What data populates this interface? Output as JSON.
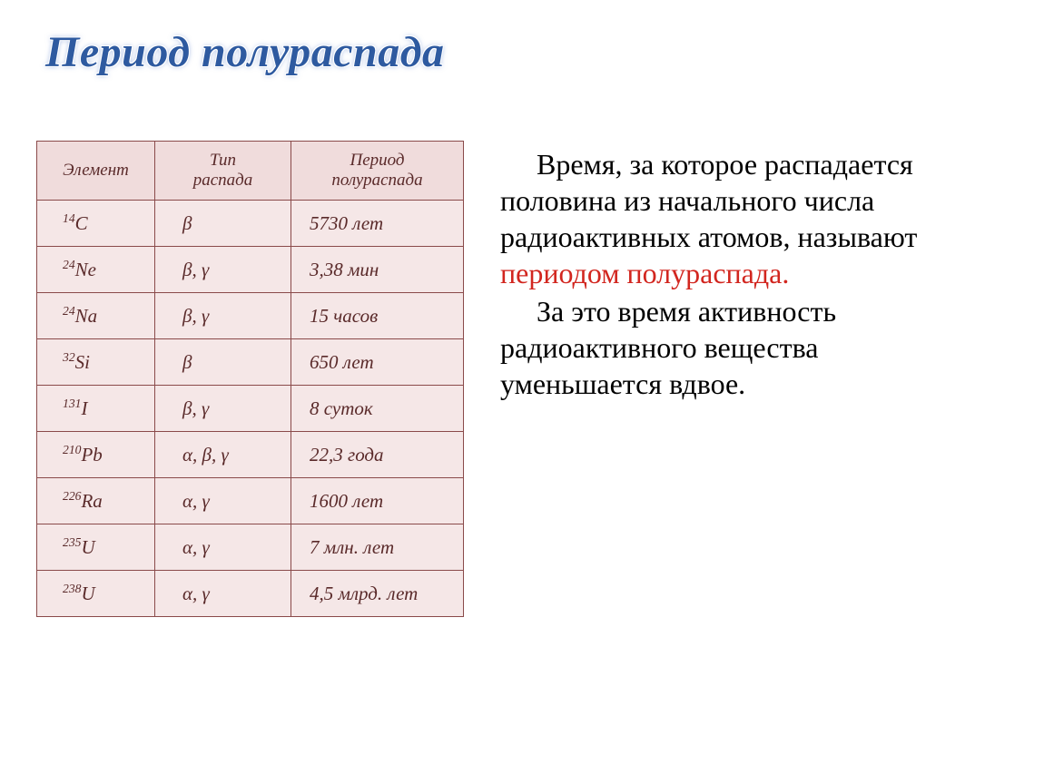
{
  "title": "Период полураспада",
  "table": {
    "headers": [
      "Элемент",
      "Тип\nраспада",
      "Период\nполураспада"
    ],
    "rows": [
      {
        "mass": "14",
        "sym": "C",
        "type": "β",
        "period": "5730 лет"
      },
      {
        "mass": "24",
        "sym": "Ne",
        "type": "β, γ",
        "period": "3,38 мин"
      },
      {
        "mass": "24",
        "sym": "Na",
        "type": "β, γ",
        "period": "15 часов"
      },
      {
        "mass": "32",
        "sym": "Si",
        "type": "β",
        "period": "650 лет"
      },
      {
        "mass": "131",
        "sym": "I",
        "type": "β, γ",
        "period": "8 суток"
      },
      {
        "mass": "210",
        "sym": "Pb",
        "type": "α, β, γ",
        "period": "22,3 года"
      },
      {
        "mass": "226",
        "sym": "Ra",
        "type": "α, γ",
        "period": "1600 лет"
      },
      {
        "mass": "235",
        "sym": "U",
        "type": "α, γ",
        "period": "7 млн. лет"
      },
      {
        "mass": "238",
        "sym": "U",
        "type": "α, γ",
        "period": "4,5 млрд. лет"
      }
    ]
  },
  "paragraphs": {
    "p1a": "Время, за которое распадается половина из начального числа радиоактивных атомов, называют ",
    "p1b": "периодом полураспада.",
    "p2": "За это время активность радиоактивного вещества уменьшается вдвое."
  },
  "style": {
    "title_color": "#2e5aa0",
    "table_bg": "#f5e7e7",
    "table_border": "#8a4a4a",
    "table_text": "#5a2a2a",
    "red": "#d2261f",
    "body_text": "#000000",
    "title_fontsize": 48,
    "body_fontsize": 32,
    "cell_fontsize": 21,
    "header_fontsize": 19
  }
}
